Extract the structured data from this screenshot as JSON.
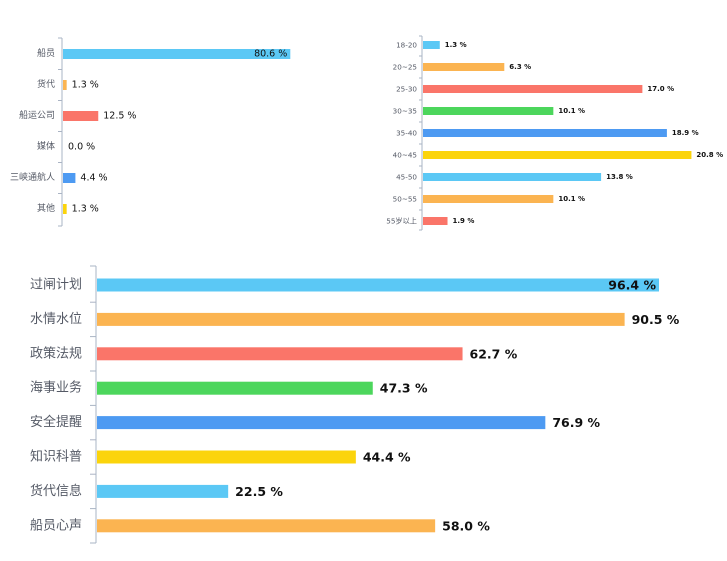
{
  "chart_data": [
    {
      "type": "bar",
      "orientation": "horizontal",
      "categories": [
        "船员",
        "货代",
        "船运公司",
        "媒体",
        "三峡通航人",
        "其他"
      ],
      "values": [
        80.6,
        1.3,
        12.5,
        0.0,
        4.4,
        1.3
      ],
      "value_labels": [
        "80.6 %",
        "1.3 %",
        "12.5 %",
        "0.0 %",
        "4.4 %",
        "1.3 %"
      ],
      "colors": [
        "#5bc8f5",
        "#fbb451",
        "#fa7569",
        "#4cd65c",
        "#4d9af2",
        "#fbd40c"
      ],
      "xlim": [
        0,
        100
      ]
    },
    {
      "type": "bar",
      "orientation": "horizontal",
      "categories": [
        "18-20",
        "20~25",
        "25-30",
        "30~35",
        "35-40",
        "40~45",
        "45-50",
        "50~55",
        "55岁以上"
      ],
      "values": [
        1.3,
        6.3,
        17.0,
        10.1,
        18.9,
        20.8,
        13.8,
        10.1,
        1.9
      ],
      "value_labels": [
        "1.3 %",
        "6.3 %",
        "17.0 %",
        "10.1 %",
        "18.9 %",
        "20.8 %",
        "13.8 %",
        "10.1 %",
        "1.9 %"
      ],
      "colors": [
        "#5bc8f5",
        "#fbb451",
        "#fa7569",
        "#4cd65c",
        "#4d9af2",
        "#fbd40c",
        "#5bc8f5",
        "#fbb451",
        "#fa7569"
      ],
      "xlim": [
        0,
        21
      ]
    },
    {
      "type": "bar",
      "orientation": "horizontal",
      "categories": [
        "过闸计划",
        "水情水位",
        "政策法规",
        "海事业务",
        "安全提醒",
        "知识科普",
        "货代信息",
        "船员心声"
      ],
      "values": [
        96.4,
        90.5,
        62.7,
        47.3,
        76.9,
        44.4,
        22.5,
        58.0
      ],
      "value_labels": [
        "96.4 %",
        "90.5 %",
        "62.7 %",
        "47.3 %",
        "76.9 %",
        "44.4 %",
        "22.5 %",
        "58.0 %"
      ],
      "colors": [
        "#5bc8f5",
        "#fbb451",
        "#fa7569",
        "#4cd65c",
        "#4d9af2",
        "#fbd40c",
        "#5bc8f5",
        "#fbb451"
      ],
      "xlim": [
        0,
        100
      ]
    }
  ]
}
